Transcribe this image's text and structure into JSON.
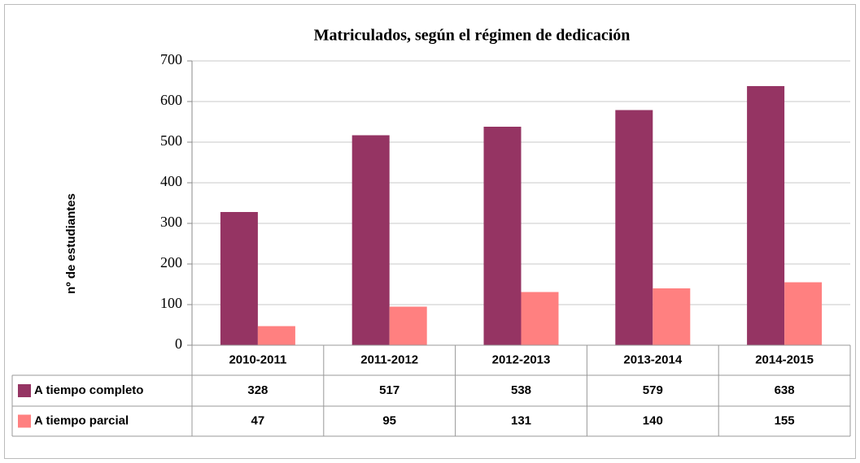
{
  "chart_data": {
    "type": "bar",
    "title": "Matriculados, según el régimen de dedicación",
    "y_label": "nº de estudiantes",
    "categories": [
      "2010-2011",
      "2011-2012",
      "2012-2013",
      "2013-2014",
      "2014-2015"
    ],
    "series": [
      {
        "name": "A tiempo completo",
        "color": "#953463",
        "values": [
          328,
          517,
          538,
          579,
          638
        ]
      },
      {
        "name": "A tiempo parcial",
        "color": "#ff8080",
        "values": [
          47,
          95,
          131,
          140,
          155
        ]
      }
    ],
    "ylim": [
      0,
      700
    ],
    "yticks": [
      0,
      100,
      200,
      300,
      400,
      500,
      600,
      700
    ],
    "grid": true
  }
}
